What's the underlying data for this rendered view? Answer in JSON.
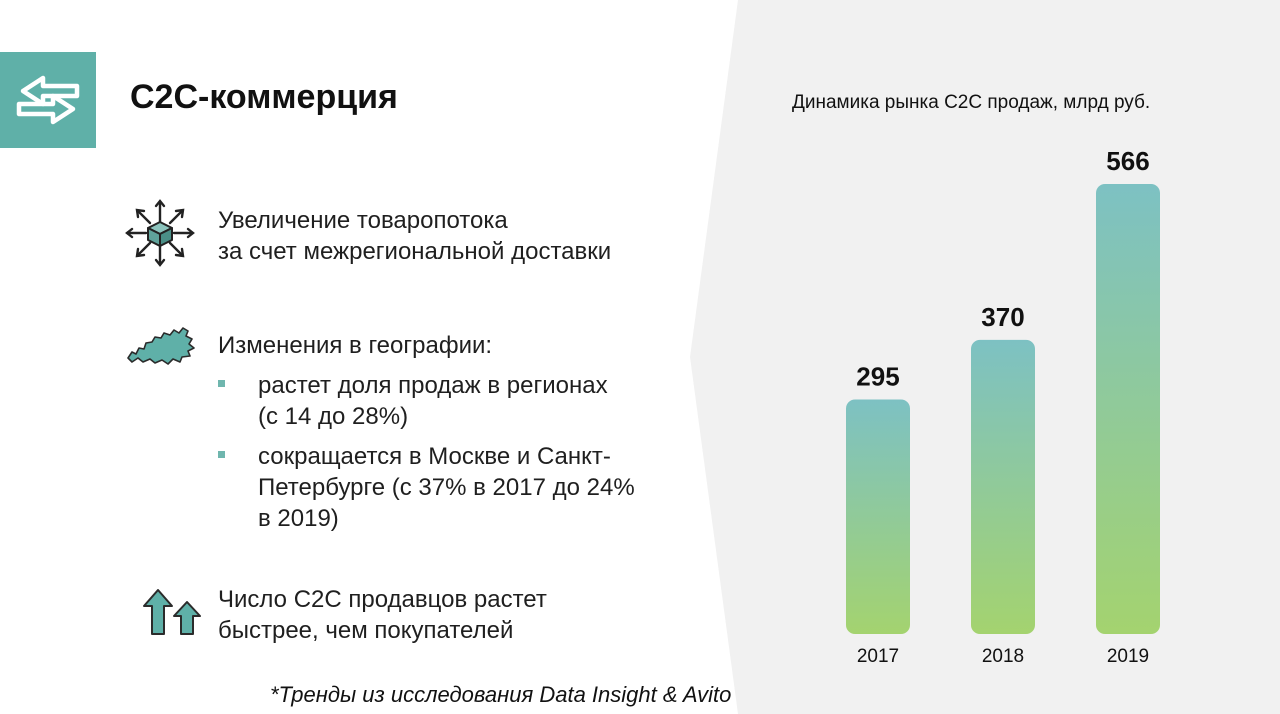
{
  "header": {
    "title": "C2C-коммерция",
    "badge_icon": "swap-arrows-icon"
  },
  "blocks": [
    {
      "icon": "package-distribution-icon",
      "lines": [
        "Увеличение товаропотока",
        "за счет межрегиональной доставки"
      ]
    },
    {
      "icon": "russia-map-icon",
      "heading": "Изменения в географии:",
      "bullets": [
        [
          "растет доля продаж в регионах",
          "(с 14 до 28%)"
        ],
        [
          "сокращается в Москве и Санкт-",
          "Петербурге (с 37% в 2017 до 24%",
          "в 2019)"
        ]
      ]
    },
    {
      "icon": "growth-arrows-icon",
      "lines": [
        "Число C2C продавцов растет",
        "быстрее, чем покупателей"
      ]
    }
  ],
  "footnote": "*Тренды из исследования Data Insight & Avito",
  "colors": {
    "accent": "#5fb0a8",
    "panel_bg": "#f1f1f1",
    "bar_top": "#7dc1c3",
    "bar_bottom": "#a4d36f"
  },
  "chart_data": {
    "type": "bar",
    "title": "Динамика рынка C2C продаж, млрд руб.",
    "categories": [
      "2017",
      "2018",
      "2019"
    ],
    "values": [
      295,
      370,
      566
    ],
    "data_labels": [
      "295",
      "370",
      "566"
    ],
    "xlabel": "",
    "ylabel": "",
    "ylim": [
      0,
      566
    ],
    "grid": false,
    "legend": "none"
  }
}
